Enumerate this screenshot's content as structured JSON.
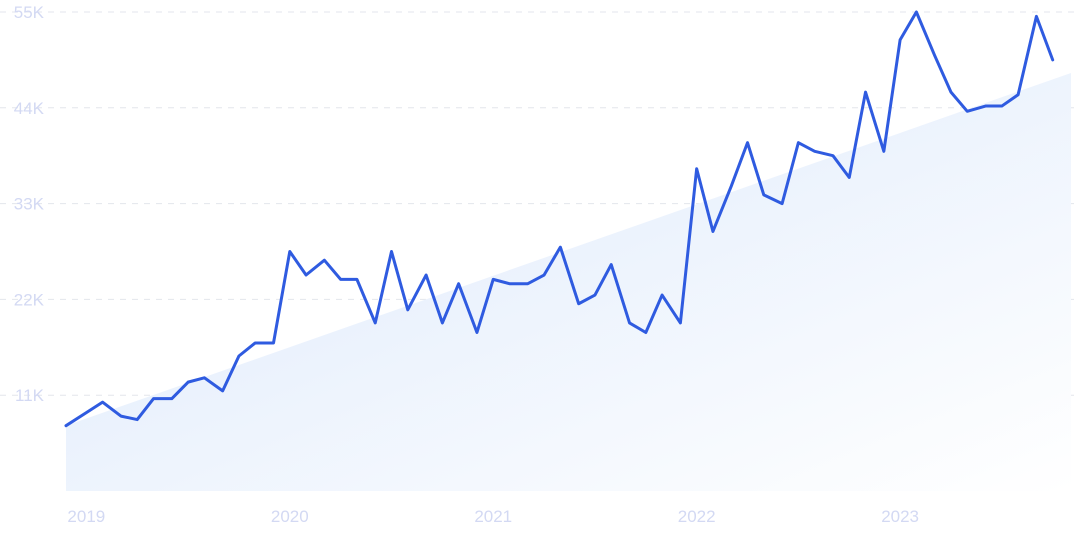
{
  "chart_data": {
    "type": "line",
    "title": "",
    "xlabel": "",
    "ylabel": "",
    "ylim": [
      0,
      55000
    ],
    "yticks": [
      11000,
      22000,
      33000,
      44000,
      55000
    ],
    "ytick_labels": [
      "11K",
      "22K",
      "33K",
      "44K",
      "55K"
    ],
    "xticks": [
      2019,
      2020,
      2021,
      2022,
      2023
    ],
    "xtick_labels": [
      "2019",
      "2020",
      "2021",
      "2022",
      "2023"
    ],
    "xlim": [
      2018.9,
      2023.84
    ],
    "grid": true,
    "legend": "none",
    "trend_fill": {
      "start": [
        2018.9,
        7500
      ],
      "end": [
        2023.84,
        48000
      ]
    },
    "colors": {
      "line": "#2f5be0",
      "fill_top": "#dde9fb",
      "fill_bottom": "#ffffff",
      "tick_text": "#d3d9f3",
      "grid": "#e3e6ec"
    },
    "series": [
      {
        "points": [
          [
            2018.9,
            7500
          ],
          [
            2019.0,
            9000
          ],
          [
            2019.08,
            10200
          ],
          [
            2019.17,
            8600
          ],
          [
            2019.25,
            8200
          ],
          [
            2019.33,
            10600
          ],
          [
            2019.42,
            10600
          ],
          [
            2019.5,
            12500
          ],
          [
            2019.58,
            13000
          ],
          [
            2019.67,
            11500
          ],
          [
            2019.75,
            15500
          ],
          [
            2019.83,
            17000
          ],
          [
            2019.92,
            17000
          ],
          [
            2020.0,
            27500
          ],
          [
            2020.08,
            24800
          ],
          [
            2020.17,
            26500
          ],
          [
            2020.25,
            24300
          ],
          [
            2020.33,
            24300
          ],
          [
            2020.42,
            19300
          ],
          [
            2020.5,
            27500
          ],
          [
            2020.58,
            20800
          ],
          [
            2020.67,
            24800
          ],
          [
            2020.75,
            19300
          ],
          [
            2020.83,
            23800
          ],
          [
            2020.92,
            18200
          ],
          [
            2021.0,
            24300
          ],
          [
            2021.08,
            23800
          ],
          [
            2021.17,
            23800
          ],
          [
            2021.25,
            24800
          ],
          [
            2021.33,
            28000
          ],
          [
            2021.42,
            21500
          ],
          [
            2021.5,
            22500
          ],
          [
            2021.58,
            26000
          ],
          [
            2021.67,
            19300
          ],
          [
            2021.75,
            18200
          ],
          [
            2021.83,
            22500
          ],
          [
            2021.92,
            19300
          ],
          [
            2022.0,
            37000
          ],
          [
            2022.08,
            29800
          ],
          [
            2022.17,
            35000
          ],
          [
            2022.25,
            40000
          ],
          [
            2022.33,
            34000
          ],
          [
            2022.42,
            33000
          ],
          [
            2022.5,
            40000
          ],
          [
            2022.58,
            39000
          ],
          [
            2022.67,
            38500
          ],
          [
            2022.75,
            36000
          ],
          [
            2022.83,
            45800
          ],
          [
            2022.92,
            39000
          ],
          [
            2023.0,
            51800
          ],
          [
            2023.08,
            55000
          ],
          [
            2023.17,
            50000
          ],
          [
            2023.25,
            45800
          ],
          [
            2023.33,
            43600
          ],
          [
            2023.42,
            44200
          ],
          [
            2023.5,
            44200
          ],
          [
            2023.58,
            45500
          ],
          [
            2023.67,
            54500
          ],
          [
            2023.75,
            49500
          ]
        ]
      }
    ]
  }
}
